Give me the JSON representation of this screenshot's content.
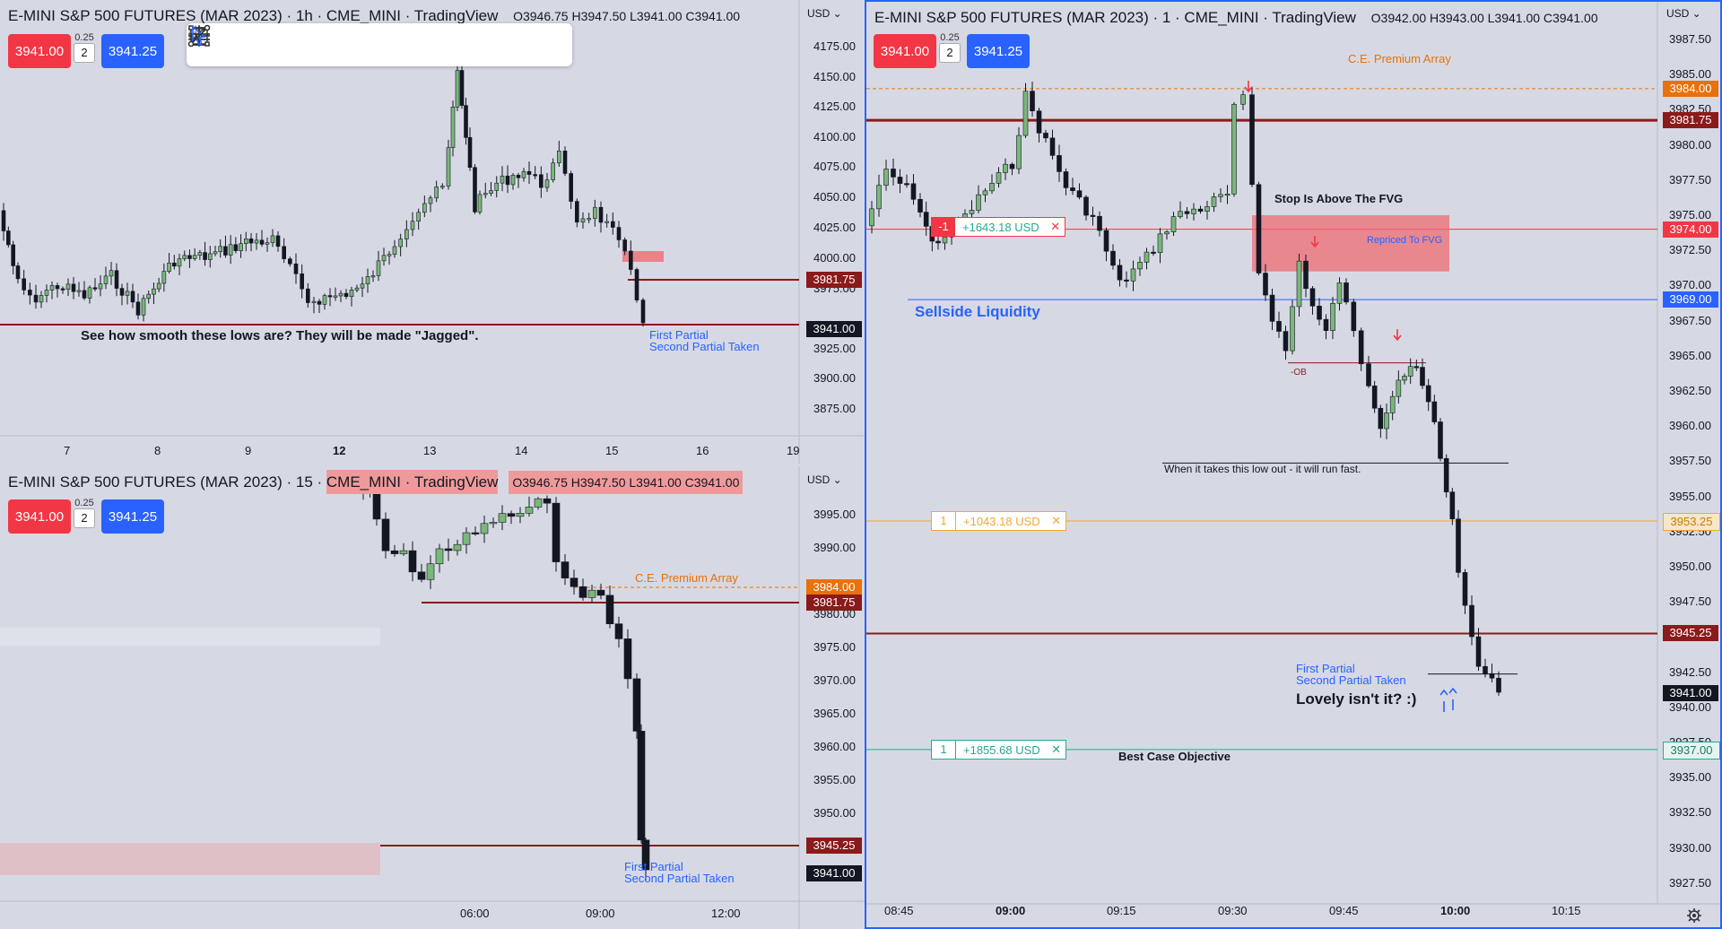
{
  "colors": {
    "bg": "#d6d9e3",
    "up": "#7ab77a",
    "down": "#131722",
    "level_red": "#8b1a1a",
    "orange": "#e8710a",
    "blue": "#2962ff",
    "teal": "#22ab94",
    "fvg": "#ef6b73"
  },
  "top_left": {
    "title": "E-MINI S&P 500 FUTURES (MAR 2023) · 1h · CME_MINI · TradingView",
    "ohlc": "O3946.75  H3947.50  L3941.00  C3941.00",
    "sell_price": "3941.00",
    "buy_price": "3941.25",
    "tick": "0.25",
    "qty": "2",
    "currency": "USD",
    "y_ticks": [
      "4175.00",
      "4150.00",
      "4125.00",
      "4100.00",
      "4075.00",
      "4050.00",
      "4025.00",
      "4000.00",
      "3975.00",
      "3925.00",
      "3900.00",
      "3875.00"
    ],
    "x_ticks": [
      "7",
      "8",
      "9",
      "12",
      "13",
      "14",
      "15",
      "16",
      "19"
    ],
    "price_labels": [
      "3981.75",
      "3941.00"
    ],
    "annotation_lows": "See how smooth these lows are?  They will be made \"Jagged\".",
    "annotation_first": "First Partial",
    "annotation_second": "Second Partial Taken",
    "toolbar": [
      "drag-handle",
      "crosshair",
      "horizontal-ray",
      "vertical-line",
      "parallel-channel",
      "fib-retracement",
      "text",
      "rectangle",
      "cursor",
      "trend-line"
    ]
  },
  "bottom_left": {
    "title": "E-MINI S&P 500 FUTURES (MAR 2023) · 15 · ",
    "title_sym": "CME_MINI · TradingView",
    "ohlc": "O3946.75  H3947.50  L3941.00  C3941.00",
    "sell_price": "3941.00",
    "buy_price": "3941.25",
    "tick": "0.25",
    "qty": "2",
    "currency": "USD",
    "y_ticks": [
      "3995.00",
      "3990.00",
      "3980.00",
      "3975.00",
      "3970.00",
      "3965.00",
      "3960.00",
      "3955.00",
      "3950.00"
    ],
    "x_ticks": [
      "06:00",
      "09:00",
      "12:00"
    ],
    "price_labels": [
      "3984.00",
      "3981.75",
      "3945.25",
      "3941.00"
    ],
    "annotation_ce": "C.E. Premium Array",
    "annotation_first": "First Partial",
    "annotation_second": "Second Partial Taken"
  },
  "right": {
    "title": "E-MINI S&P 500 FUTURES (MAR 2023) · 1 · CME_MINI · TradingView",
    "ohlc": "O3942.00  H3943.00  L3941.00  C3941.00",
    "sell_price": "3941.00",
    "buy_price": "3941.25",
    "tick": "0.25",
    "qty": "2",
    "currency": "USD",
    "y_ticks": [
      "3987.50",
      "3985.00",
      "3982.50",
      "3980.00",
      "3977.50",
      "3975.00",
      "3972.50",
      "3970.00",
      "3967.50",
      "3965.00",
      "3962.50",
      "3960.00",
      "3957.50",
      "3955.00",
      "3952.50",
      "3950.00",
      "3947.50",
      "3945.00",
      "3942.50",
      "3940.00",
      "3937.50",
      "3935.00",
      "3932.50",
      "3930.00",
      "3927.50"
    ],
    "x_ticks": [
      "08:45",
      "09:00",
      "09:15",
      "09:30",
      "09:45",
      "10:00",
      "10:15"
    ],
    "price_labels": [
      "3984.00",
      "3981.75",
      "3974.00",
      "3969.00",
      "3953.25",
      "3945.25",
      "3941.00",
      "3937.00"
    ],
    "annotation_ce": "C.E. Premium Array",
    "annotation_stop": "Stop Is Above The FVG",
    "annotation_repriced": "Repriced To FVG",
    "annotation_sellside": "Sellside Liquidity",
    "annotation_ob": "-OB",
    "annotation_low": "When it takes this low out - it will run fast.",
    "annotation_first": "First Partial",
    "annotation_second": "Second Partial Taken",
    "annotation_lovely": "Lovely isn't it?  :)",
    "annotation_best": "Best Case Objective",
    "orders": [
      {
        "qty": "-1",
        "pl": "+1643.18 USD"
      },
      {
        "qty": "1",
        "pl": "+1043.18 USD"
      },
      {
        "qty": "1",
        "pl": "+1855.68 USD"
      }
    ]
  }
}
